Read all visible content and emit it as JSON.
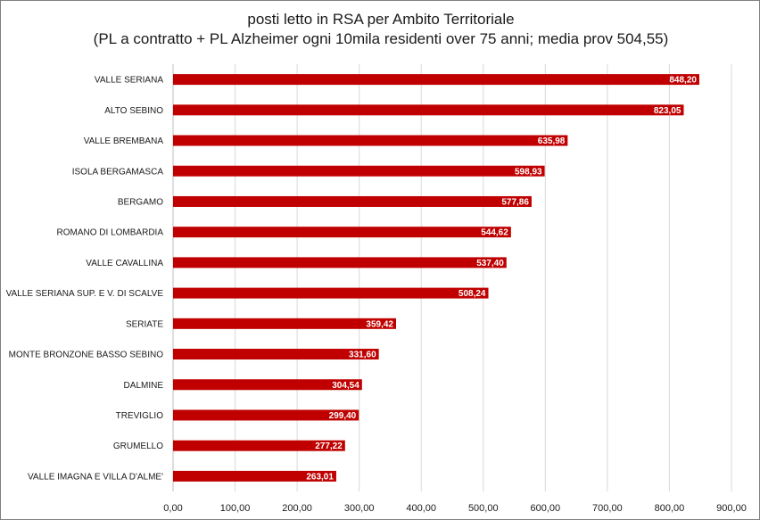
{
  "chart_data": {
    "type": "bar",
    "orientation": "horizontal",
    "title": "posti letto in RSA per Ambito Territoriale",
    "subtitle": "(PL a contratto + PL Alzheimer ogni 10mila residenti over 75 anni; media prov 504,55)",
    "categories": [
      "VALLE SERIANA",
      "ALTO SEBINO",
      "VALLE BREMBANA",
      "ISOLA BERGAMASCA",
      "BERGAMO",
      "ROMANO DI LOMBARDIA",
      "VALLE CAVALLINA",
      "VALLE SERIANA SUP. E V. DI SCALVE",
      "SERIATE",
      "MONTE BRONZONE BASSO SEBINO",
      "DALMINE",
      "TREVIGLIO",
      "GRUMELLO",
      "VALLE IMAGNA E VILLA D'ALME'"
    ],
    "values": [
      848.2,
      823.05,
      635.98,
      598.93,
      577.86,
      544.62,
      537.4,
      508.24,
      359.42,
      331.6,
      304.54,
      299.4,
      277.22,
      263.01
    ],
    "value_labels": [
      "848,20",
      "823,05",
      "635,98",
      "598,93",
      "577,86",
      "544,62",
      "537,40",
      "508,24",
      "359,42",
      "331,60",
      "304,54",
      "299,40",
      "277,22",
      "263,01"
    ],
    "xlim": [
      0,
      900
    ],
    "x_ticks": [
      0,
      100,
      200,
      300,
      400,
      500,
      600,
      700,
      800,
      900
    ],
    "x_tick_labels": [
      "0,00",
      "100,00",
      "200,00",
      "300,00",
      "400,00",
      "500,00",
      "600,00",
      "700,00",
      "800,00",
      "900,00"
    ],
    "grid": "vertical",
    "legend": "none",
    "bar_color": "#c00000",
    "grid_color": "#d9d9d9",
    "label_color": "#ffffff"
  }
}
